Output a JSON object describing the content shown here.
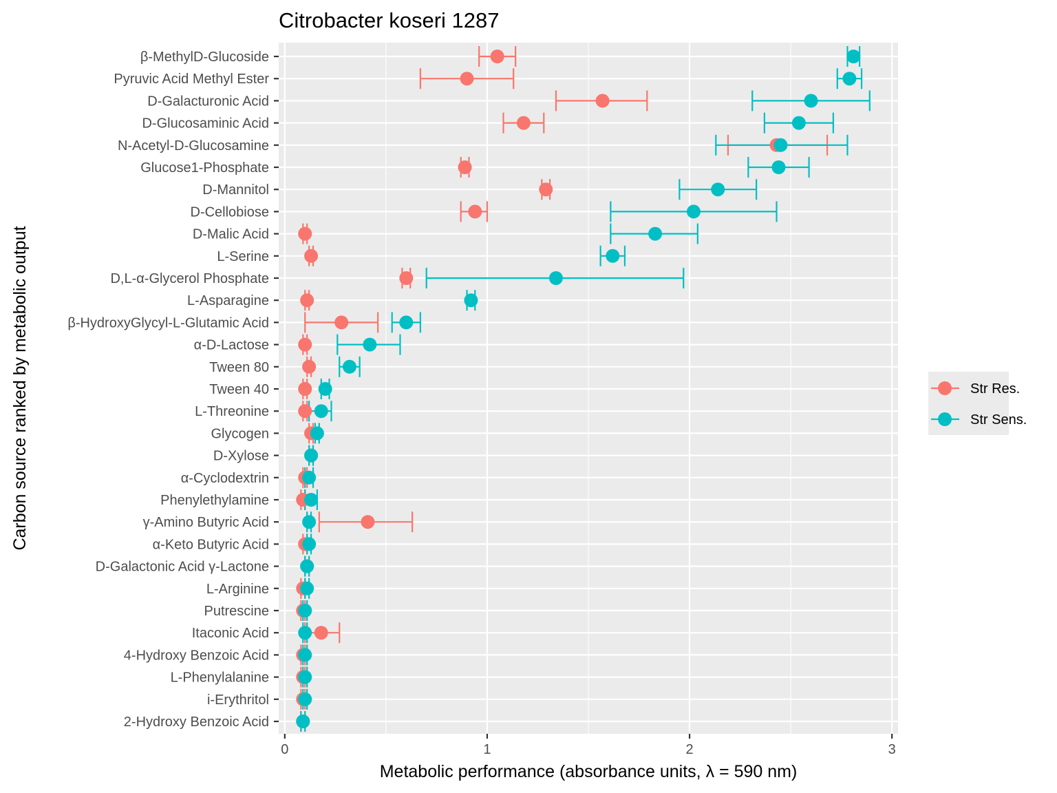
{
  "chart_data": {
    "type": "scatter",
    "title": "Citrobacter koseri 1287",
    "xlabel": "Metabolic performance (absorbance units, λ = 590 nm)",
    "ylabel": "Carbon source ranked by metabolic output",
    "xlim": [
      -0.03,
      3.03
    ],
    "x_ticks": [
      0,
      1,
      2,
      3
    ],
    "x_tick_labels": [
      "0",
      "1",
      "2",
      "3"
    ],
    "grid": true,
    "legend_position": "right",
    "categories": [
      "β-MethylD-Glucoside",
      "Pyruvic Acid Methyl Ester",
      "D-Galacturonic Acid",
      "D-Glucosaminic Acid",
      "N-Acetyl-D-Glucosamine",
      "Glucose1-Phosphate",
      "D-Mannitol",
      "D-Cellobiose",
      "D-Malic Acid",
      "L-Serine",
      "D,L-α-Glycerol Phosphate",
      "L-Asparagine",
      "β-HydroxyGlycyl-L-Glutamic Acid",
      "α-D-Lactose",
      "Tween 80",
      "Tween 40",
      "L-Threonine",
      "Glycogen",
      "D-Xylose",
      "α-Cyclodextrin",
      "Phenylethylamine",
      "γ-Amino Butyric Acid",
      "α-Keto Butyric Acid",
      "D-Galactonic Acid γ-Lactone",
      "L-Arginine",
      "Putrescine",
      "Itaconic Acid",
      "4-Hydroxy Benzoic Acid",
      "L-Phenylalanine",
      "i-Erythritol",
      "2-Hydroxy Benzoic Acid"
    ],
    "series": [
      {
        "name": "Str Res.",
        "color": "#F8766D",
        "values": [
          1.05,
          0.9,
          1.57,
          1.18,
          2.43,
          0.89,
          1.29,
          0.94,
          0.1,
          0.13,
          0.6,
          0.11,
          0.28,
          0.1,
          0.12,
          0.1,
          0.1,
          0.13,
          0.13,
          0.1,
          0.09,
          0.41,
          0.1,
          0.11,
          0.09,
          0.09,
          0.18,
          0.09,
          0.09,
          0.09,
          0.09
        ],
        "err_low": [
          0.96,
          0.67,
          1.34,
          1.08,
          2.19,
          0.87,
          1.27,
          0.87,
          0.09,
          0.12,
          0.58,
          0.1,
          0.1,
          0.09,
          0.11,
          0.09,
          0.09,
          0.12,
          0.12,
          0.09,
          0.08,
          0.17,
          0.09,
          0.1,
          0.08,
          0.08,
          0.1,
          0.08,
          0.08,
          0.08,
          0.08
        ],
        "err_high": [
          1.14,
          1.13,
          1.79,
          1.28,
          2.68,
          0.91,
          1.31,
          1.0,
          0.11,
          0.14,
          0.62,
          0.12,
          0.46,
          0.11,
          0.13,
          0.11,
          0.11,
          0.14,
          0.14,
          0.11,
          0.1,
          0.63,
          0.11,
          0.12,
          0.1,
          0.1,
          0.27,
          0.1,
          0.1,
          0.1,
          0.1
        ]
      },
      {
        "name": "Str Sens.",
        "color": "#00BFC4",
        "values": [
          2.81,
          2.79,
          2.6,
          2.54,
          2.45,
          2.44,
          2.14,
          2.02,
          1.83,
          1.62,
          1.34,
          0.92,
          0.6,
          0.42,
          0.32,
          0.2,
          0.18,
          0.16,
          0.13,
          0.12,
          0.13,
          0.12,
          0.12,
          0.11,
          0.11,
          0.1,
          0.1,
          0.1,
          0.1,
          0.1,
          0.09
        ],
        "err_low": [
          2.78,
          2.73,
          2.31,
          2.37,
          2.13,
          2.29,
          1.95,
          1.61,
          1.61,
          1.56,
          0.7,
          0.9,
          0.53,
          0.26,
          0.27,
          0.18,
          0.12,
          0.15,
          0.12,
          0.1,
          0.1,
          0.11,
          0.11,
          0.1,
          0.1,
          0.09,
          0.09,
          0.09,
          0.09,
          0.09,
          0.08
        ],
        "err_high": [
          2.84,
          2.85,
          2.89,
          2.71,
          2.78,
          2.59,
          2.33,
          2.43,
          2.04,
          1.68,
          1.97,
          0.94,
          0.67,
          0.57,
          0.37,
          0.22,
          0.23,
          0.17,
          0.14,
          0.14,
          0.16,
          0.13,
          0.13,
          0.12,
          0.12,
          0.11,
          0.11,
          0.11,
          0.11,
          0.11,
          0.1
        ]
      }
    ]
  }
}
